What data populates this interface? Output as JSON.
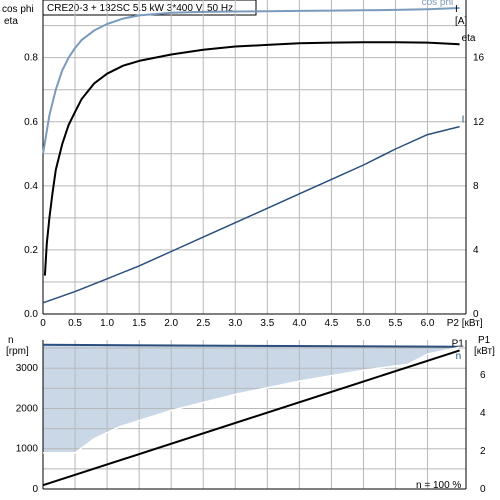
{
  "title": "CRE20-3 + 132SC  5.5 kW  3*400 V, 50 Hz",
  "colors": {
    "cosphi": "#7a9bbd",
    "eta": "#000000",
    "current": "#2a4f7d",
    "speed": "#2a4f7d",
    "p1": "#000000",
    "fill": "#c9d7e6",
    "grid": "#b8b8b8"
  },
  "note": "n = 100 %",
  "chart_data": [
    {
      "type": "line",
      "x_unit_label": "P2 [кВт]",
      "x_ticks": [
        "0",
        "0.5",
        "1.0",
        "1.5",
        "2.0",
        "2.5",
        "3.0",
        "3.5",
        "4.0",
        "4.5",
        "5.0",
        "5.5",
        "6.0"
      ],
      "xlim": [
        0,
        6.6
      ],
      "ylabel_left": [
        "cos phi",
        "eta"
      ],
      "y_ticks_left": [
        "0.0",
        "0.2",
        "0.4",
        "0.6",
        "0.8"
      ],
      "ylim_left": [
        0,
        0.98
      ],
      "ylabel_right": [
        "I",
        "[A]"
      ],
      "y_ticks_right": [
        "0",
        "4",
        "8",
        "12",
        "16"
      ],
      "ylim_right": [
        0,
        19.6
      ],
      "grid": true,
      "series": [
        {
          "name": "cos phi",
          "axis": "left",
          "x": [
            0,
            0.05,
            0.1,
            0.2,
            0.3,
            0.4,
            0.5,
            0.6,
            0.8,
            1.0,
            1.25,
            1.5,
            2.0,
            2.5,
            3.0,
            3.5,
            4.0,
            4.5,
            5.0,
            5.5,
            6.0,
            6.5
          ],
          "y": [
            0.5,
            0.56,
            0.62,
            0.7,
            0.76,
            0.8,
            0.83,
            0.855,
            0.885,
            0.905,
            0.922,
            0.932,
            0.94,
            0.943,
            0.944,
            0.945,
            0.946,
            0.947,
            0.948,
            0.949,
            0.951,
            0.955
          ]
        },
        {
          "name": "eta",
          "axis": "left",
          "x": [
            0.03,
            0.06,
            0.1,
            0.15,
            0.2,
            0.3,
            0.4,
            0.5,
            0.6,
            0.8,
            1.0,
            1.25,
            1.5,
            2.0,
            2.5,
            3.0,
            3.5,
            4.0,
            4.5,
            5.0,
            5.5,
            6.0,
            6.5
          ],
          "y": [
            0.12,
            0.22,
            0.3,
            0.38,
            0.45,
            0.53,
            0.59,
            0.63,
            0.67,
            0.72,
            0.75,
            0.775,
            0.79,
            0.81,
            0.825,
            0.835,
            0.84,
            0.845,
            0.847,
            0.848,
            0.848,
            0.847,
            0.842
          ]
        },
        {
          "name": "I",
          "axis": "right",
          "x": [
            0,
            0.5,
            1.0,
            1.5,
            2.0,
            2.5,
            3.0,
            3.5,
            4.0,
            4.5,
            5.0,
            5.5,
            6.0,
            6.5
          ],
          "y": [
            0.7,
            1.4,
            2.2,
            3.0,
            3.9,
            4.8,
            5.7,
            6.6,
            7.5,
            8.4,
            9.3,
            10.3,
            11.2,
            11.7
          ]
        }
      ]
    },
    {
      "type": "area",
      "ylabel_left": [
        "n",
        "[rpm]"
      ],
      "y_ticks_left": [
        "0",
        "1000",
        "2000",
        "3000"
      ],
      "ylim_left": [
        0,
        3700
      ],
      "ylabel_right": [
        "P1",
        "[кВт]"
      ],
      "y_ticks_right": [
        "0",
        "2",
        "4",
        "6"
      ],
      "ylim_right": [
        0,
        7.85
      ],
      "xlim": [
        0,
        6.6
      ],
      "grid": true,
      "series": [
        {
          "name": "",
          "role": "area-upper",
          "x": [
            0,
            6.5
          ],
          "y": [
            3580,
            3530
          ]
        },
        {
          "name": "n",
          "role": "area-lower",
          "x": [
            0,
            0.5,
            0.8,
            1.2,
            2.0,
            3.0,
            4.0,
            5.0,
            5.7,
            6.0,
            6.5
          ],
          "y": [
            900,
            900,
            1250,
            1550,
            1950,
            2350,
            2680,
            2950,
            3100,
            3350,
            3520
          ]
        },
        {
          "name": "P1",
          "axis": "right",
          "x": [
            0,
            6.5
          ],
          "y": [
            0.2,
            7.3
          ]
        }
      ]
    }
  ]
}
